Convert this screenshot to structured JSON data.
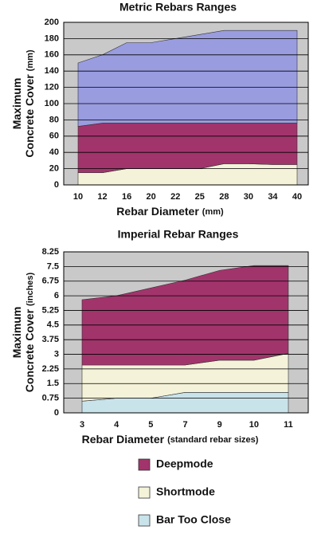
{
  "charts": [
    {
      "chart_data": {
        "type": "stacked-area",
        "title": "Metric Rebars Ranges",
        "xlabel": {
          "text": "Rebar Diameter",
          "unit": "(mm)"
        },
        "ylabel": {
          "lines": [
            "Maximum",
            "Concrete Cover"
          ],
          "unit": "(mm)"
        },
        "categories": [
          "10",
          "12",
          "16",
          "20",
          "22",
          "25",
          "28",
          "30",
          "34",
          "40"
        ],
        "series": [
          {
            "color": "#f4f2d8",
            "values": [
              15,
              15,
              20,
              20,
              20,
              20,
              26,
              26,
              25,
              25
            ]
          },
          {
            "color": "#a2346c",
            "values": [
              57,
              61,
              56,
              56,
              56,
              56,
              50,
              50,
              51,
              51
            ]
          },
          {
            "color": "#9a9ce0",
            "values": [
              78,
              84,
              99,
              99,
              104,
              109,
              114,
              114,
              114,
              114
            ]
          }
        ],
        "ylim": [
          0,
          200
        ],
        "yticks": [
          0,
          20,
          40,
          60,
          80,
          100,
          120,
          140,
          160,
          180,
          200
        ],
        "grid": true
      }
    },
    {
      "chart_data": {
        "type": "stacked-area",
        "title": "Imperial Rebar Ranges",
        "xlabel": {
          "text": "Rebar Diameter",
          "unit": "(standard rebar sizes)"
        },
        "ylabel": {
          "lines": [
            "Maximum",
            "Concrete Cover"
          ],
          "unit": "(inches)"
        },
        "categories": [
          "3",
          "4",
          "5",
          "7",
          "9",
          "10",
          "11"
        ],
        "series": [
          {
            "color": "#c9e3ea",
            "values": [
              0.6,
              0.75,
              0.75,
              1.05,
              1.05,
              1.05,
              1.05
            ]
          },
          {
            "color": "#f4f2d8",
            "values": [
              1.85,
              1.7,
              1.7,
              1.4,
              1.65,
              1.65,
              2.0
            ]
          },
          {
            "color": "#a2346c",
            "values": [
              3.35,
              3.55,
              3.95,
              4.35,
              4.6,
              4.85,
              4.5
            ]
          }
        ],
        "ylim": [
          0,
          8.25
        ],
        "yticks": [
          0,
          0.75,
          1.5,
          2.25,
          3,
          3.75,
          4.5,
          5.25,
          6,
          6.75,
          7.5,
          8.25
        ],
        "grid": true
      }
    }
  ],
  "legend": [
    {
      "label": "Deepmode",
      "color": "#a2346c"
    },
    {
      "label": "Shortmode",
      "color": "#f4f2d8"
    },
    {
      "label": "Bar Too Close",
      "color": "#c9e3ea"
    }
  ]
}
